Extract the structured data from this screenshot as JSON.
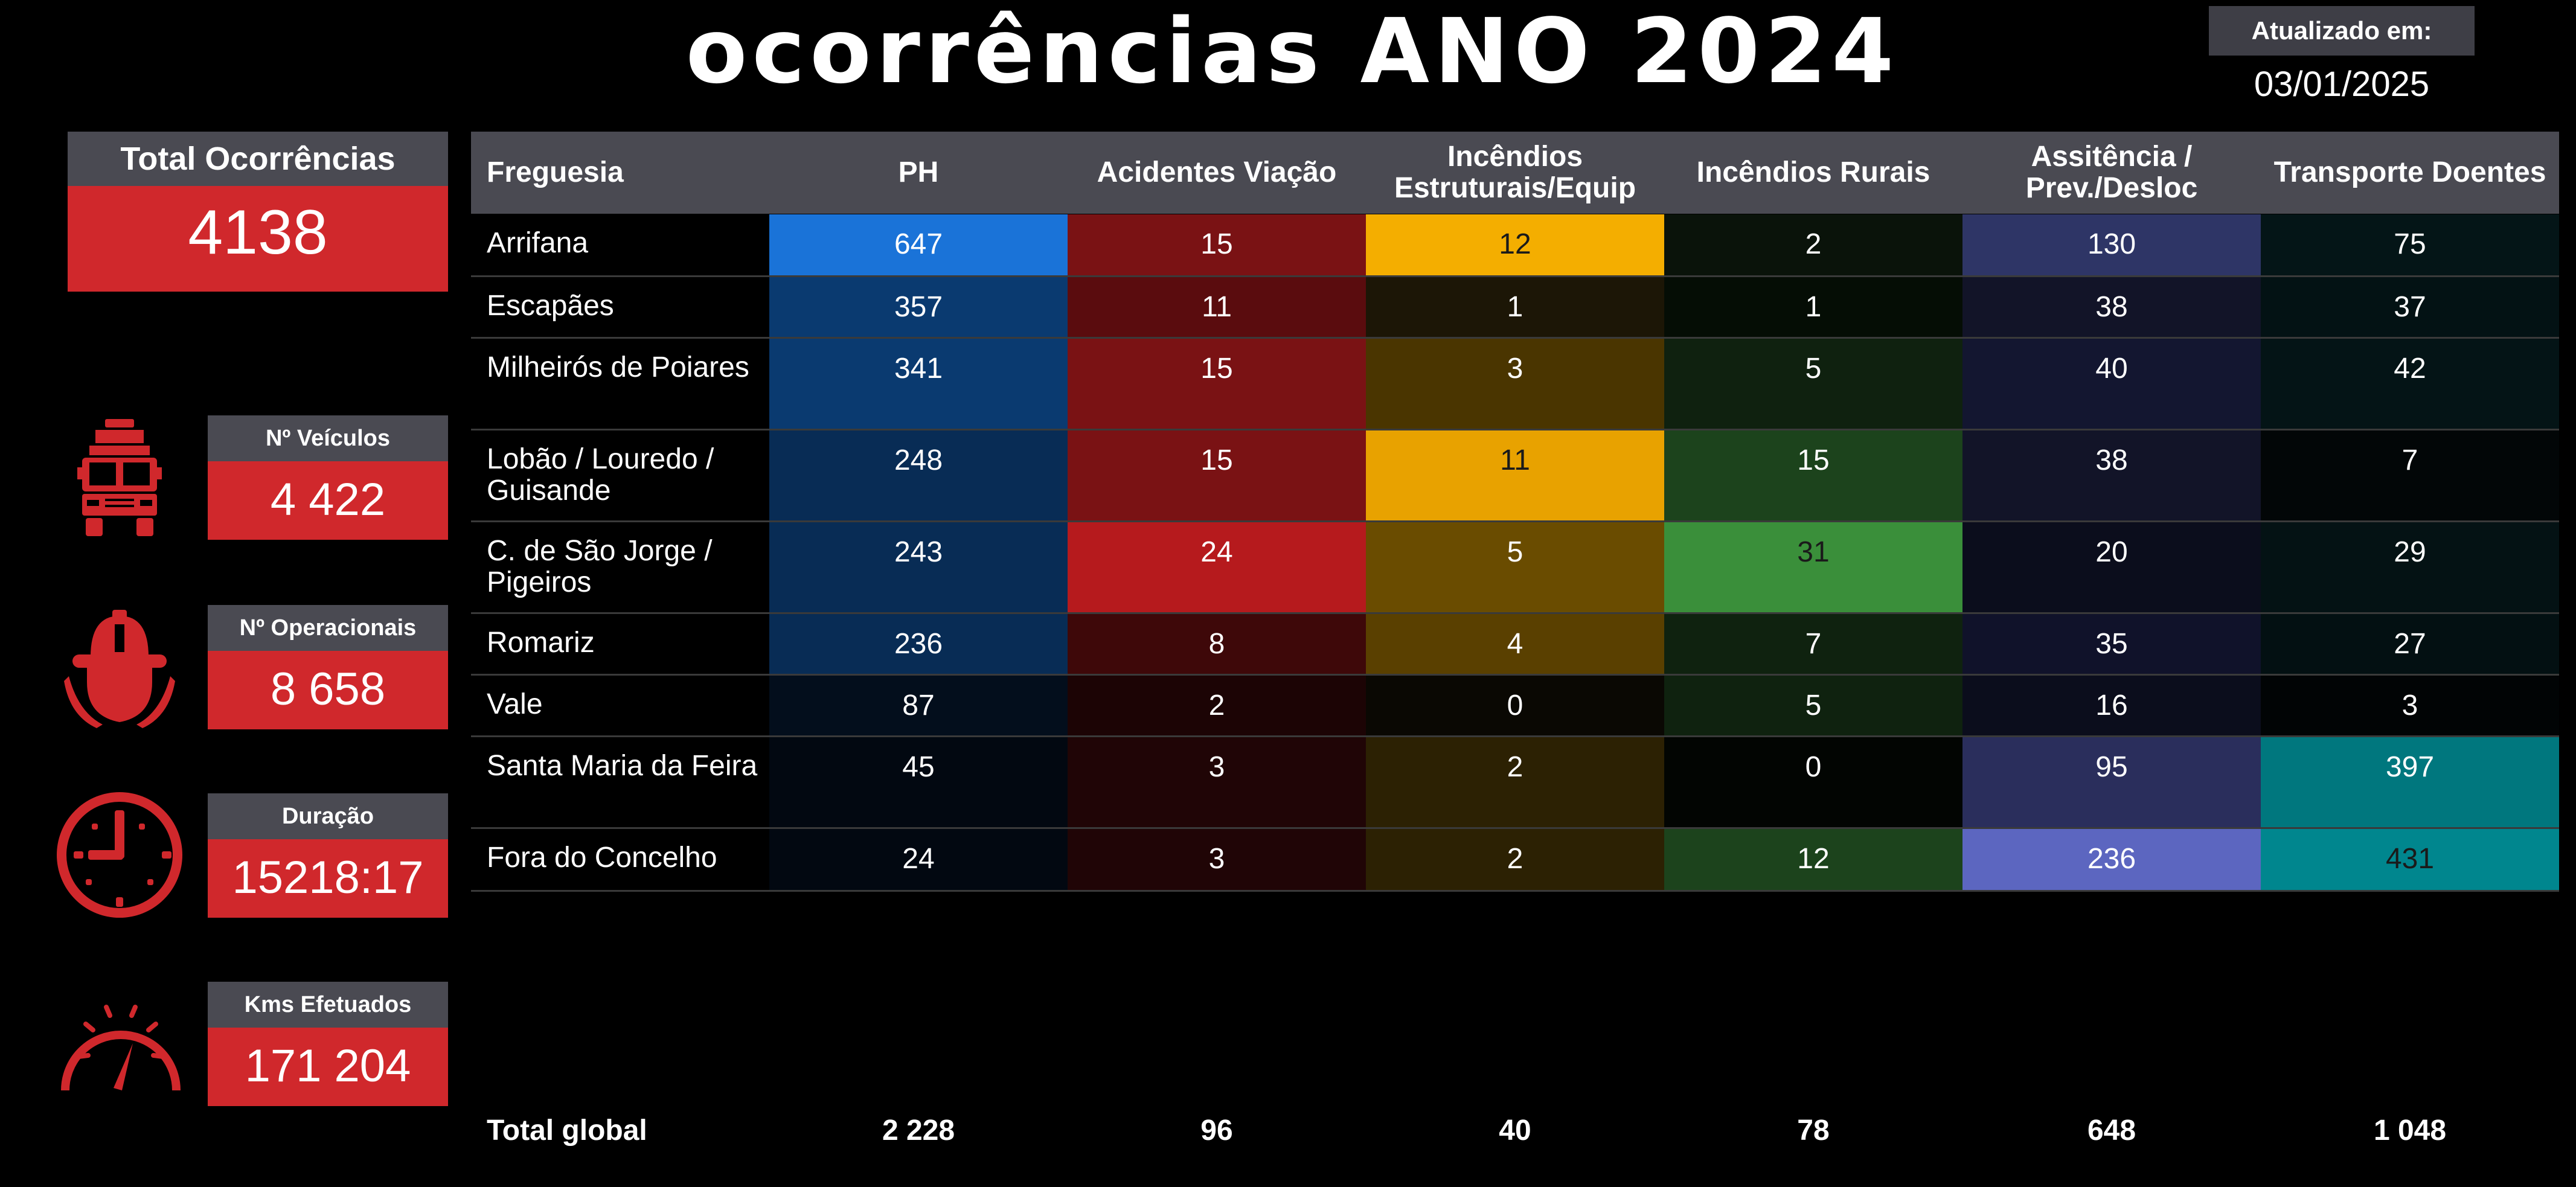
{
  "title": "ocorrências ANO 2024",
  "updated": {
    "label": "Atualizado em:",
    "date": "03/01/2025"
  },
  "total": {
    "label": "Total Ocorrências",
    "value": "4138"
  },
  "kpis": [
    {
      "label": "Nº Veículos",
      "value": "4 422",
      "icon": "fire-truck-icon"
    },
    {
      "label": "Nº Operacionais",
      "value": "8 658",
      "icon": "firefighter-icon"
    },
    {
      "label": "Duração",
      "value": "15218:17",
      "icon": "clock-icon"
    },
    {
      "label": "Kms Efetuados",
      "value": "171 204",
      "icon": "speedometer-icon"
    }
  ],
  "table": {
    "headers": [
      "Freguesia",
      "PH",
      "Acidentes Viação",
      "Incêndios Estruturais/Equip",
      "Incêndios Rurais",
      "Assitência / Prev./Desloc",
      "Transporte Doentes"
    ],
    "rows": [
      {
        "name": "Arrifana",
        "values": [
          "647",
          "15",
          "12",
          "2",
          "130",
          "75"
        ]
      },
      {
        "name": "Escapães",
        "values": [
          "357",
          "11",
          "1",
          "1",
          "38",
          "37"
        ]
      },
      {
        "name": "Milheirós de Poiares",
        "values": [
          "341",
          "15",
          "3",
          "5",
          "40",
          "42"
        ]
      },
      {
        "name": "Lobão / Louredo / Guisande",
        "values": [
          "248",
          "15",
          "11",
          "15",
          "38",
          "7"
        ]
      },
      {
        "name": "C. de São Jorge / Pigeiros",
        "values": [
          "243",
          "24",
          "5",
          "31",
          "20",
          "29"
        ]
      },
      {
        "name": "Romariz",
        "values": [
          "236",
          "8",
          "4",
          "7",
          "35",
          "27"
        ]
      },
      {
        "name": "Vale",
        "values": [
          "87",
          "2",
          "0",
          "5",
          "16",
          "3"
        ]
      },
      {
        "name": "Santa Maria da Feira",
        "values": [
          "45",
          "3",
          "2",
          "0",
          "95",
          "397"
        ]
      },
      {
        "name": "Fora do Concelho",
        "values": [
          "24",
          "3",
          "2",
          "12",
          "236",
          "431"
        ]
      }
    ],
    "cell_colors": [
      [
        "#1a73d8",
        "#7a1214",
        "#f4ae00",
        "#0a130a",
        "#2e3566",
        "#041517"
      ],
      [
        "#0a3a70",
        "#5a0c0e",
        "#1c1606",
        "#050d05",
        "#121428",
        "#031214"
      ],
      [
        "#0a3a70",
        "#7a1214",
        "#4a3500",
        "#0f210f",
        "#131630",
        "#041416"
      ],
      [
        "#082c55",
        "#7a1214",
        "#e8a200",
        "#1c431c",
        "#121428",
        "#020607"
      ],
      [
        "#082c55",
        "#b61a1d",
        "#6a4c00",
        "#3a8f3a",
        "#0b0d1c",
        "#041214"
      ],
      [
        "#082c55",
        "#3e0809",
        "#5a4000",
        "#0f220f",
        "#10122a",
        "#031012"
      ],
      [
        "#030e1c",
        "#1c0405",
        "#0a0803",
        "#0f220f",
        "#0b0d1c",
        "#010405"
      ],
      [
        "#020811",
        "#200506",
        "#2c2103",
        "#020502",
        "#2a2e5c",
        "#00777e"
      ],
      [
        "#020811",
        "#200506",
        "#2c2103",
        "#1c431c",
        "#5c66c0",
        "#00868e"
      ]
    ],
    "dark_text_cells": [
      [
        0,
        2
      ],
      [
        3,
        2
      ],
      [
        4,
        3
      ],
      [
        8,
        5
      ]
    ],
    "totals": {
      "label": "Total global",
      "values": [
        "2 228",
        "96",
        "40",
        "78",
        "648",
        "1 048"
      ]
    }
  }
}
